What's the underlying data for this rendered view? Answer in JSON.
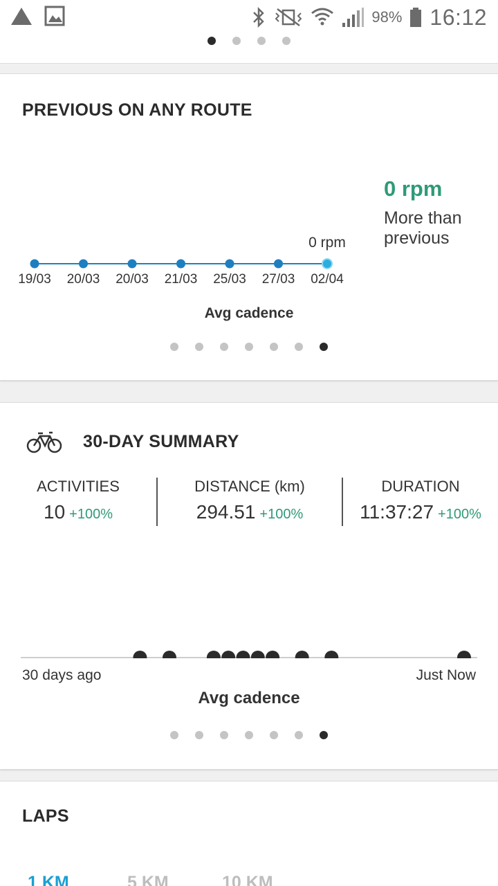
{
  "status_bar": {
    "battery": "98%",
    "time": "16:12"
  },
  "page_indicator": {
    "count": 4,
    "active_index": 0
  },
  "previous_route_card": {
    "title": "PREVIOUS ON ANY ROUTE",
    "metric_value": "0 rpm",
    "metric_caption": "More than previous",
    "point_label": "0 rpm",
    "caption": "Avg cadence",
    "pager": {
      "count": 7,
      "active_index": 6
    }
  },
  "summary_card": {
    "title": "30-DAY SUMMARY",
    "stats": [
      {
        "label": "ACTIVITIES",
        "value": "10",
        "change": "+100%"
      },
      {
        "label": "DISTANCE (km)",
        "value": "294.51",
        "change": "+100%"
      },
      {
        "label": "DURATION",
        "value": "11:37:27",
        "change": "+100%"
      }
    ],
    "axis_start": "30 days ago",
    "axis_end": "Just Now",
    "caption": "Avg cadence",
    "pager": {
      "count": 7,
      "active_index": 6
    }
  },
  "laps_card": {
    "title": "LAPS",
    "tabs": [
      {
        "label": "1 KM",
        "active": true
      },
      {
        "label": "5 KM",
        "active": false
      },
      {
        "label": "10 KM",
        "active": false
      }
    ]
  },
  "colors": {
    "accent_green": "#2f9a78",
    "point_blue": "#1e7fc0",
    "point_current": "#29aee0",
    "tab_active": "#1aa0d4"
  },
  "chart_data": [
    {
      "type": "line",
      "categories": [
        "19/03",
        "20/03",
        "20/03",
        "21/03",
        "25/03",
        "27/03",
        "02/04"
      ],
      "values": [
        0,
        0,
        0,
        0,
        0,
        0,
        0
      ],
      "ylabel": "Avg cadence"
    },
    {
      "type": "scatter",
      "x_label_start": "30 days ago",
      "x_label_end": "Just Now",
      "xlabel": "Avg cadence",
      "x": [
        22,
        20,
        17,
        16,
        15,
        14,
        13,
        11,
        9,
        0
      ],
      "values": [
        0,
        0,
        0,
        0,
        0,
        0,
        0,
        0,
        0,
        0
      ]
    }
  ]
}
